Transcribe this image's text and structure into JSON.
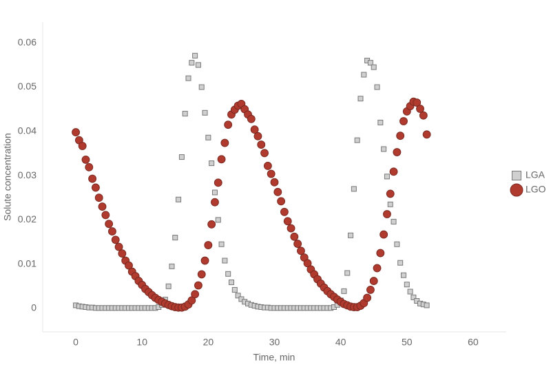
{
  "chart_data": {
    "type": "scatter",
    "x_label": "Time, min",
    "y_label": "Solute concentration",
    "xlim": [
      -5,
      65
    ],
    "ylim": [
      -0.0053,
      0.0647
    ],
    "xticks": [
      0,
      10,
      20,
      30,
      40,
      50,
      60
    ],
    "yticks": [
      0,
      0.01,
      0.02,
      0.03,
      0.04,
      0.05,
      0.06
    ],
    "grid": false,
    "legend": "right",
    "x": [
      0,
      0.5,
      1,
      1.5,
      2,
      2.5,
      3,
      3.5,
      4,
      4.5,
      5,
      5.5,
      6,
      6.5,
      7,
      7.5,
      8,
      8.5,
      9,
      9.5,
      10,
      10.5,
      11,
      11.5,
      12,
      12.5,
      13,
      13.5,
      14,
      14.5,
      15,
      15.5,
      16,
      16.5,
      17,
      17.5,
      18,
      18.5,
      19,
      19.5,
      20,
      20.5,
      21,
      21.5,
      22,
      22.5,
      23,
      23.5,
      24,
      24.5,
      25,
      25.5,
      26,
      26.5,
      27,
      27.5,
      28,
      28.5,
      29,
      29.5,
      30,
      30.5,
      31,
      31.5,
      32,
      32.5,
      33,
      33.5,
      34,
      34.5,
      35,
      35.5,
      36,
      36.5,
      37,
      37.5,
      38,
      38.5,
      39,
      39.5,
      40,
      40.5,
      41,
      41.5,
      42,
      42.5,
      43,
      43.5,
      44,
      44.5,
      45,
      45.5,
      46,
      46.5,
      47,
      47.5,
      48,
      48.5,
      49,
      49.5,
      50,
      50.5,
      51,
      51.5,
      52,
      52.5,
      53
    ],
    "series": [
      {
        "name": "LGA",
        "marker": "square",
        "color": "#d0d0d0",
        "values": [
          0.0007,
          0.0005,
          0.0004,
          0.0003,
          0.0002,
          0.0002,
          0.0001,
          0.0001,
          0.0001,
          0.0001,
          0.0001,
          0.0001,
          0.0001,
          0.0001,
          0.0001,
          0.0001,
          0.0001,
          0.0001,
          0.0001,
          0.0001,
          0.0001,
          0.0001,
          0.0001,
          0.0001,
          0.0001,
          0.0003,
          0.0008,
          0.002,
          0.005,
          0.0095,
          0.016,
          0.0246,
          0.0342,
          0.044,
          0.052,
          0.0555,
          0.0571,
          0.055,
          0.05,
          0.0442,
          0.0386,
          0.0328,
          0.0262,
          0.02,
          0.0145,
          0.0108,
          0.0078,
          0.0059,
          0.0042,
          0.0029,
          0.0021,
          0.0015,
          0.0011,
          0.0008,
          0.0006,
          0.0004,
          0.0003,
          0.0002,
          0.0002,
          0.0001,
          0.0001,
          0.0001,
          0.0001,
          0.0001,
          0.0001,
          0.0001,
          0.0001,
          0.0001,
          0.0001,
          0.0001,
          0.0001,
          0.0001,
          0.0001,
          0.0001,
          0.0001,
          0.0001,
          0.0001,
          0.0001,
          0.0003,
          0.0008,
          0.0018,
          0.0039,
          0.008,
          0.0165,
          0.027,
          0.038,
          0.0474,
          0.0528,
          0.056,
          0.0555,
          0.0545,
          0.05,
          0.042,
          0.036,
          0.0298,
          0.0235,
          0.0196,
          0.0145,
          0.0103,
          0.0075,
          0.0054,
          0.0038,
          0.0025,
          0.0017,
          0.0011,
          0.0009,
          0.0007
        ]
      },
      {
        "name": "LGO",
        "marker": "circle",
        "color": "#b03a2e",
        "values": [
          0.0398,
          0.038,
          0.0367,
          0.0336,
          0.0319,
          0.0293,
          0.0273,
          0.025,
          0.023,
          0.0211,
          0.0191,
          0.0174,
          0.0155,
          0.0139,
          0.0124,
          0.0108,
          0.0097,
          0.0083,
          0.0073,
          0.0062,
          0.0053,
          0.0044,
          0.0037,
          0.003,
          0.0024,
          0.0019,
          0.0015,
          0.0011,
          0.0008,
          0.0005,
          0.0003,
          0.0002,
          0.0002,
          0.0004,
          0.0009,
          0.0018,
          0.0032,
          0.0052,
          0.0077,
          0.0108,
          0.0143,
          0.019,
          0.024,
          0.0284,
          0.0337,
          0.0374,
          0.0415,
          0.0438,
          0.0449,
          0.0458,
          0.0462,
          0.045,
          0.0438,
          0.0428,
          0.0404,
          0.0389,
          0.037,
          0.0351,
          0.0322,
          0.0304,
          0.0285,
          0.0263,
          0.0242,
          0.0218,
          0.0197,
          0.0181,
          0.0162,
          0.0146,
          0.013,
          0.0115,
          0.0102,
          0.0088,
          0.0077,
          0.0066,
          0.0056,
          0.0047,
          0.0039,
          0.0032,
          0.0026,
          0.002,
          0.0015,
          0.001,
          0.0007,
          0.0004,
          0.0003,
          0.0003,
          0.0006,
          0.0012,
          0.0024,
          0.0042,
          0.0062,
          0.0091,
          0.0125,
          0.0167,
          0.0213,
          0.0259,
          0.0309,
          0.0353,
          0.039,
          0.0423,
          0.0445,
          0.0457,
          0.0467,
          0.0465,
          0.0451,
          0.0436,
          0.0393
        ]
      }
    ]
  }
}
